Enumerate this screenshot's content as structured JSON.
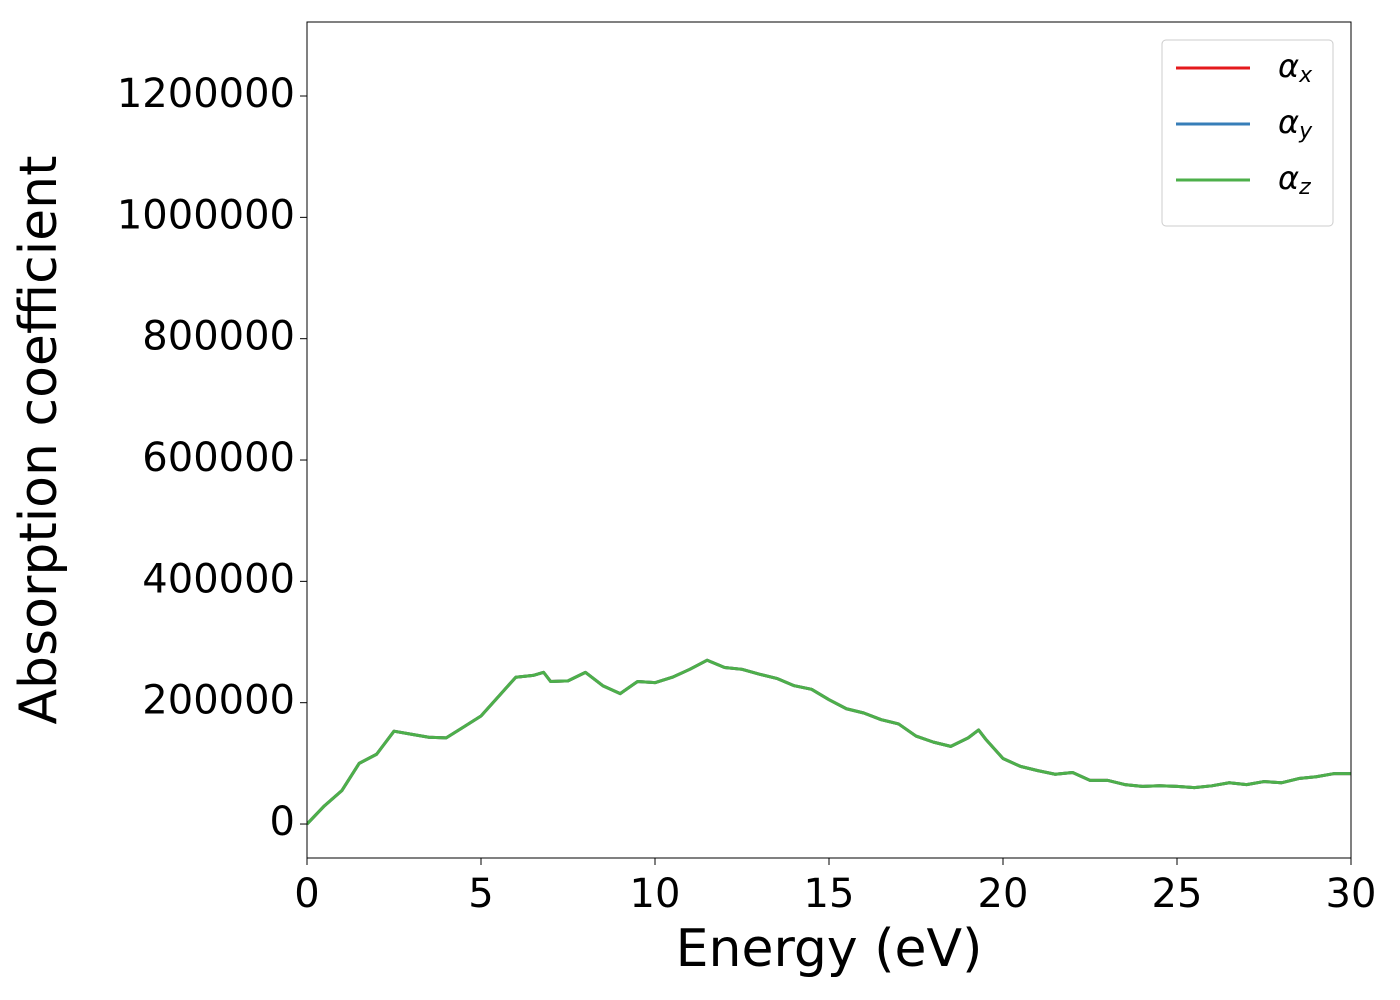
{
  "chart_data": {
    "type": "line",
    "xlabel": "Energy (eV)",
    "ylabel": "Absorption coefficient",
    "x": [
      0,
      0.5,
      1,
      1.5,
      2,
      2.5,
      3,
      3.5,
      4,
      4.5,
      5,
      5.5,
      6,
      6.5,
      6.8,
      7,
      7.5,
      8,
      8.5,
      9,
      9.5,
      10,
      10.5,
      11,
      11.5,
      12,
      12.5,
      13,
      13.5,
      14,
      14.5,
      15,
      15.5,
      16,
      16.5,
      17,
      17.5,
      18,
      18.5,
      19,
      19.3,
      19.5,
      20,
      20.5,
      21,
      21.5,
      22,
      22.5,
      23,
      23.5,
      24,
      24.5,
      25,
      25.5,
      26,
      26.5,
      27,
      27.5,
      28,
      28.5,
      29,
      29.5,
      30
    ],
    "series": [
      {
        "name": "αx",
        "color": "#e41a1c",
        "values": [
          0,
          30000,
          55000,
          100000,
          115000,
          153000,
          148000,
          143000,
          142000,
          160000,
          178000,
          210000,
          242000,
          245000,
          250000,
          235000,
          236000,
          250000,
          228000,
          215000,
          235000,
          233000,
          242000,
          255000,
          270000,
          258000,
          255000,
          247000,
          240000,
          228000,
          222000,
          205000,
          190000,
          183000,
          172000,
          165000,
          145000,
          135000,
          128000,
          142000,
          155000,
          140000,
          108000,
          95000,
          88000,
          82000,
          85000,
          72000,
          72000,
          65000,
          62000,
          63000,
          62000,
          60000,
          63000,
          68000,
          65000,
          70000,
          68000,
          75000,
          78000,
          83000,
          83000
        ]
      },
      {
        "name": "αy",
        "color": "#377eb8",
        "values": [
          0,
          30000,
          55000,
          100000,
          115000,
          153000,
          148000,
          143000,
          142000,
          160000,
          178000,
          210000,
          242000,
          245000,
          250000,
          235000,
          236000,
          250000,
          228000,
          215000,
          235000,
          233000,
          242000,
          255000,
          270000,
          258000,
          255000,
          247000,
          240000,
          228000,
          222000,
          205000,
          190000,
          183000,
          172000,
          165000,
          145000,
          135000,
          128000,
          142000,
          155000,
          140000,
          108000,
          95000,
          88000,
          82000,
          85000,
          72000,
          72000,
          65000,
          62000,
          63000,
          62000,
          60000,
          63000,
          68000,
          65000,
          70000,
          68000,
          75000,
          78000,
          83000,
          83000
        ]
      },
      {
        "name": "αz",
        "color": "#4daf4a",
        "values": [
          0,
          30000,
          55000,
          100000,
          115000,
          153000,
          148000,
          143000,
          142000,
          160000,
          178000,
          210000,
          242000,
          245000,
          250000,
          235000,
          236000,
          250000,
          228000,
          215000,
          235000,
          233000,
          242000,
          255000,
          270000,
          258000,
          255000,
          247000,
          240000,
          228000,
          222000,
          205000,
          190000,
          183000,
          172000,
          165000,
          145000,
          135000,
          128000,
          142000,
          155000,
          140000,
          108000,
          95000,
          88000,
          82000,
          85000,
          72000,
          72000,
          65000,
          62000,
          63000,
          62000,
          60000,
          63000,
          68000,
          65000,
          70000,
          68000,
          75000,
          78000,
          83000,
          83000
        ]
      }
    ],
    "xlim": [
      0,
      30
    ],
    "xticks": [
      0,
      5,
      10,
      15,
      20,
      25,
      30
    ],
    "ylim": [
      -56000,
      1322000
    ],
    "yticks": [
      0,
      200000,
      400000,
      600000,
      800000,
      1000000,
      1200000
    ],
    "grid": false,
    "legend": "upper right"
  }
}
